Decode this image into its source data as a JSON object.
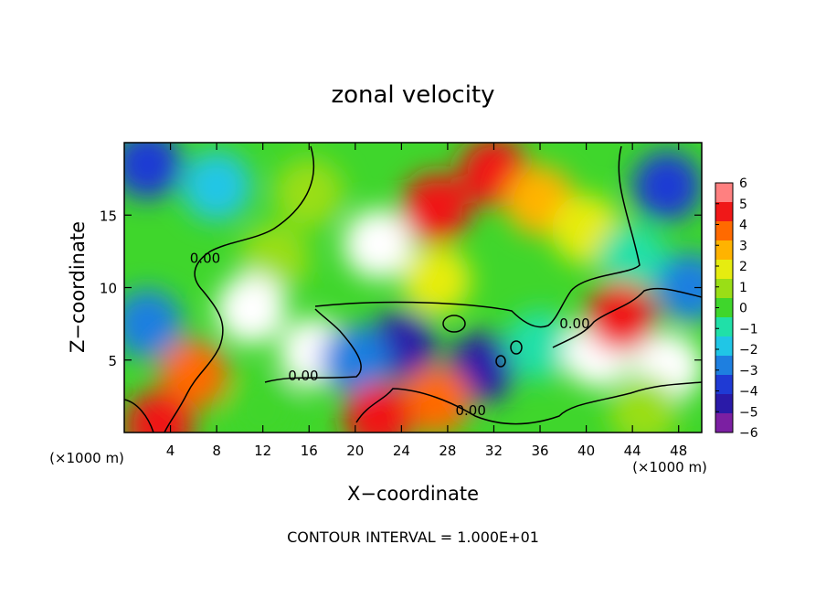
{
  "chart_data": {
    "type": "heatmap",
    "title": "zonal velocity",
    "xlabel": "X−coordinate",
    "ylabel": "Z−coordinate",
    "x_unit": "(×1000 m)",
    "y_unit": "(×1000 m)",
    "xlim": [
      0,
      50
    ],
    "ylim": [
      0,
      20
    ],
    "x_ticks": [
      4,
      8,
      12,
      16,
      20,
      24,
      28,
      32,
      36,
      40,
      44,
      48
    ],
    "y_ticks": [
      5,
      10,
      15
    ],
    "colorbar_ticks": [
      6,
      5,
      4,
      3,
      2,
      1,
      0,
      -1,
      -2,
      -3,
      -4,
      -5,
      -6
    ],
    "colorbar_labels": [
      "6",
      "5",
      "4",
      "3",
      "2",
      "1",
      "0",
      "−1",
      "−2",
      "−3",
      "−4",
      "−5",
      "−6"
    ],
    "colorbar_range": [
      -6,
      6
    ],
    "contour_labels": [
      {
        "text": "0.00",
        "x": 7,
        "y": 11.7
      },
      {
        "text": "0.00",
        "x": 15.5,
        "y": 3.6
      },
      {
        "text": "0.00",
        "x": 30,
        "y": 1.2
      },
      {
        "text": "0.00",
        "x": 39,
        "y": 7.2
      }
    ],
    "annotation": "CONTOUR INTERVAL = 1.000E+01",
    "colormap": [
      "#7b1fa2",
      "#2a1aa8",
      "#1f3ad4",
      "#1e7fe0",
      "#20c6e6",
      "#20e0a8",
      "#3fd62c",
      "#9ade16",
      "#e6ec10",
      "#ffb300",
      "#ff6a00",
      "#f01818",
      "#ff8080"
    ],
    "features": [
      {
        "x": 22,
        "y": 13,
        "value": 6
      },
      {
        "x": 27,
        "y": 15.5,
        "value": 5
      },
      {
        "x": 32,
        "y": 18,
        "value": 4.5
      },
      {
        "x": 36,
        "y": 16,
        "value": 3
      },
      {
        "x": 40,
        "y": 14,
        "value": 1.5
      },
      {
        "x": 16,
        "y": 16.5,
        "value": 0.5
      },
      {
        "x": 8,
        "y": 17,
        "value": -2.5
      },
      {
        "x": 2,
        "y": 18.5,
        "value": -4.5
      },
      {
        "x": 47,
        "y": 17,
        "value": -4
      },
      {
        "x": 44,
        "y": 12,
        "value": -1
      },
      {
        "x": 13,
        "y": 12,
        "value": 0.5
      },
      {
        "x": 27,
        "y": 10.5,
        "value": 1.5
      },
      {
        "x": 11,
        "y": 8.5,
        "value": 6
      },
      {
        "x": 16.5,
        "y": 5.5,
        "value": 6
      },
      {
        "x": 6,
        "y": 4,
        "value": 4
      },
      {
        "x": 2,
        "y": 7.5,
        "value": -3.5
      },
      {
        "x": 24,
        "y": 6,
        "value": -5
      },
      {
        "x": 31,
        "y": 4.5,
        "value": -5.5
      },
      {
        "x": 36,
        "y": 6,
        "value": -1.5
      },
      {
        "x": 20,
        "y": 5,
        "value": -3
      },
      {
        "x": 27,
        "y": 2.2,
        "value": 4
      },
      {
        "x": 22,
        "y": 1,
        "value": 5
      },
      {
        "x": 12,
        "y": 1.5,
        "value": 0
      },
      {
        "x": 41,
        "y": 5.5,
        "value": 6
      },
      {
        "x": 47,
        "y": 4.5,
        "value": 6
      },
      {
        "x": 43,
        "y": 8,
        "value": 5
      },
      {
        "x": 45,
        "y": 1.5,
        "value": 1
      },
      {
        "x": 49,
        "y": 10,
        "value": -3
      },
      {
        "x": 3,
        "y": 0.5,
        "value": 5
      }
    ]
  }
}
